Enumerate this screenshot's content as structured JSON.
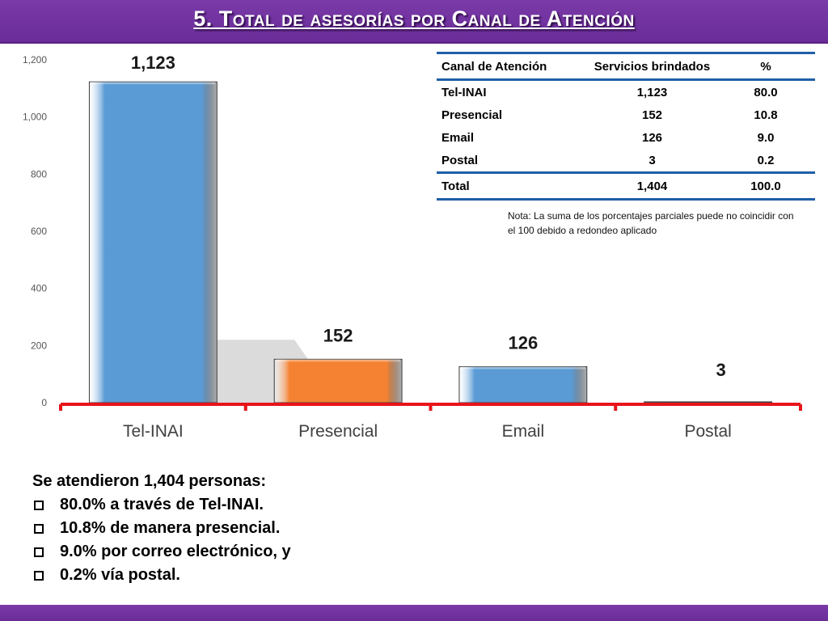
{
  "title": "5. Total de asesorías por Canal de Atención",
  "chart_data": {
    "type": "bar",
    "categories": [
      "Tel-INAI",
      "Presencial",
      "Email",
      "Postal"
    ],
    "values": [
      1123,
      152,
      126,
      3
    ],
    "value_labels": [
      "1,123",
      "152",
      "126",
      "3"
    ],
    "bar_colors": [
      "#5b9bd5",
      "#f58232",
      "#5b9bd5",
      "#5b9bd5"
    ],
    "ylim": [
      0,
      1200
    ],
    "yticks": [
      0,
      200,
      400,
      600,
      800,
      1000,
      1200
    ],
    "ytick_labels": [
      "0",
      "200",
      "400",
      "600",
      "800",
      "1,000",
      "1,200"
    ],
    "grid": false,
    "axis_color": "#e8141b"
  },
  "table": {
    "headers": [
      "Canal de Atención",
      "Servicios brindados",
      "%"
    ],
    "rows": [
      [
        "Tel-INAI",
        "1,123",
        "80.0"
      ],
      [
        "Presencial",
        "152",
        "10.8"
      ],
      [
        "Email",
        "126",
        "9.0"
      ],
      [
        "Postal",
        "3",
        "0.2"
      ]
    ],
    "total": [
      "Total",
      "1,404",
      "100.0"
    ]
  },
  "note": "Nota: La suma de los porcentajes parciales puede no coincidir con el 100 debido a redondeo aplicado",
  "summary": {
    "heading": "Se atendieron 1,404 personas:",
    "items": [
      "80.0% a través de Tel-INAI.",
      "10.8% de manera presencial.",
      "9.0% por correo electrónico, y",
      "0.2%  vía postal."
    ]
  },
  "colors": {
    "header": "#6e2f9e",
    "table_rule": "#1f5fa8"
  }
}
